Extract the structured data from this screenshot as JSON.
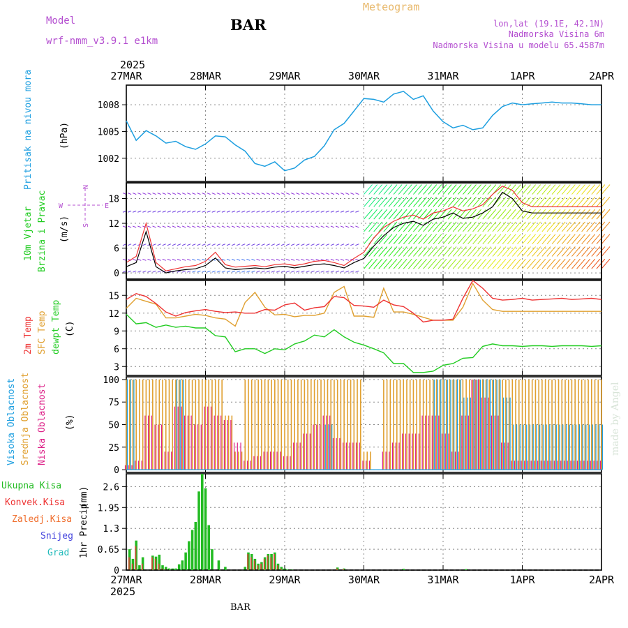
{
  "header": {
    "model_label": "Model",
    "model_name": "wrf-nmm_v3.9.1 e1km",
    "station": "BAR",
    "product": "Meteogram",
    "location": "lon,lat (19.1E, 42.1N)",
    "elevation": "Nadmorska Visina 6m",
    "model_elevation": "Nadmorska Visina u modelu 65.4587m"
  },
  "footer": {
    "station": "BAR",
    "credit": "made by Angel"
  },
  "time_axis": {
    "year": "2025",
    "labels": [
      "27MAR",
      "28MAR",
      "29MAR",
      "30MAR",
      "31MAR",
      "1APR",
      "2APR"
    ]
  },
  "colors": {
    "pressure": "#1e9fe0",
    "wind_label": "#22cc22",
    "wind_label2": "#22cc22",
    "compass": "#b44fd0",
    "t2m": "#ee3333",
    "tsfc": "#e0a030",
    "dewpt": "#22cc22",
    "cloud_high": "#1e9fe0",
    "cloud_mid": "#e0a030",
    "cloud_low": "#dd2288",
    "rain_total": "#22bb22",
    "rain_conv": "#ee3333",
    "rain_freeze": "#f07030",
    "snow": "#4444dd",
    "hail": "#22bbbb",
    "header_purple": "#b44fd0",
    "header_orange": "#e8b86a"
  },
  "chart_data": [
    {
      "type": "line",
      "panel": "pressure",
      "ylabel": "Pritisak na nivou mora",
      "unit": "(hPa)",
      "ylim": [
        999.4,
        1010.2
      ],
      "yticks": [
        1002,
        1005,
        1008
      ],
      "grid": true,
      "x": [
        0,
        3,
        6,
        9,
        12,
        15,
        18,
        21,
        24,
        27,
        30,
        33,
        36,
        39,
        42,
        45,
        48,
        51,
        54,
        57,
        60,
        63,
        66,
        69,
        72,
        75,
        78,
        81,
        84,
        87,
        90,
        93,
        96,
        99,
        102,
        105,
        108,
        111,
        114,
        117,
        120,
        123,
        126,
        129,
        132,
        135,
        138,
        141,
        144
      ],
      "series": [
        {
          "name": "",
          "values": [
            1006.2,
            1004.0,
            1005.1,
            1004.5,
            1003.7,
            1003.9,
            1003.3,
            1003.0,
            1003.6,
            1004.5,
            1004.4,
            1003.5,
            1002.8,
            1001.4,
            1001.1,
            1001.6,
            1000.6,
            1000.9,
            1001.8,
            1002.2,
            1003.4,
            1005.2,
            1005.9,
            1007.3,
            1008.7,
            1008.6,
            1008.3,
            1009.2,
            1009.5,
            1008.6,
            1009.0,
            1007.3,
            1006.1,
            1005.4,
            1005.7,
            1005.2,
            1005.4,
            1006.8,
            1007.8,
            1008.2,
            1008.0,
            1008.1,
            1008.2,
            1008.3,
            1008.2,
            1008.2,
            1008.1,
            1008.0,
            1008.0
          ]
        }
      ]
    },
    {
      "type": "line",
      "panel": "wind",
      "ylabel": [
        "10m Vjetar",
        "Brzina i Pravac"
      ],
      "unit": "(m/s)",
      "compass": [
        "N",
        "E",
        "W",
        "S"
      ],
      "ylim": [
        -1.5,
        21.8
      ],
      "yticks": [
        0,
        6,
        12,
        18
      ],
      "grid": true,
      "x": [
        0,
        3,
        6,
        9,
        12,
        15,
        18,
        21,
        24,
        27,
        30,
        33,
        36,
        39,
        42,
        45,
        48,
        51,
        54,
        57,
        60,
        63,
        66,
        69,
        72,
        75,
        78,
        81,
        84,
        87,
        90,
        93,
        96,
        99,
        102,
        105,
        108,
        111,
        114,
        117,
        120,
        123,
        126,
        129,
        132,
        135,
        138,
        141,
        144
      ],
      "series": [
        {
          "name": "",
          "values": [
            1.5,
            2.5,
            10,
            1.5,
            0,
            0.5,
            0.8,
            1.0,
            1.8,
            3.6,
            1.2,
            0.8,
            1.0,
            1.2,
            1.0,
            1.4,
            1.6,
            1.2,
            1.6,
            2.0,
            2.2,
            1.8,
            1.2,
            2.5,
            3.5,
            6.5,
            9.0,
            11.0,
            12.0,
            12.5,
            11.5,
            13.0,
            13.5,
            14.5,
            13.2,
            13.5,
            14.5,
            16.0,
            19.5,
            18.0,
            15.0,
            14.5,
            14.5,
            14.5,
            14.5,
            14.5,
            14.5,
            14.5,
            14.5
          ]
        },
        {
          "name": "",
          "values": [
            2.5,
            4.0,
            12.0,
            2.5,
            0.5,
            1.0,
            1.5,
            1.8,
            2.8,
            5.0,
            2.0,
            1.4,
            1.6,
            1.8,
            1.5,
            2.0,
            2.2,
            1.8,
            2.2,
            2.8,
            3.0,
            2.5,
            1.8,
            3.5,
            5.0,
            8.5,
            11.0,
            12.5,
            13.5,
            14.0,
            13.0,
            14.5,
            15.0,
            16.0,
            15.0,
            15.5,
            16.5,
            19.0,
            21.0,
            20.0,
            17.0,
            16.0,
            16.0,
            16.0,
            16.0,
            16.0,
            16.0,
            16.0,
            16.0
          ]
        }
      ]
    },
    {
      "type": "line",
      "panel": "temperature",
      "ylabel": [
        "2m Temp",
        "SFC Temp",
        "dewpt Temp"
      ],
      "unit": "(C)",
      "ylim": [
        1.5,
        17.5
      ],
      "yticks": [
        3,
        6,
        9,
        12,
        15
      ],
      "grid": true,
      "x": [
        0,
        3,
        6,
        9,
        12,
        15,
        18,
        21,
        24,
        27,
        30,
        33,
        36,
        39,
        42,
        45,
        48,
        51,
        54,
        57,
        60,
        63,
        66,
        69,
        72,
        75,
        78,
        81,
        84,
        87,
        90,
        93,
        96,
        99,
        102,
        105,
        108,
        111,
        114,
        117,
        120,
        123,
        126,
        129,
        132,
        135,
        138,
        141,
        144
      ],
      "series": [
        {
          "name": "",
          "values": [
            14.3,
            15.3,
            14.8,
            13.6,
            12.2,
            11.5,
            12.1,
            12.4,
            12.6,
            12.3,
            12.1,
            12.2,
            12.0,
            12.0,
            12.6,
            12.5,
            13.4,
            13.7,
            12.5,
            12.9,
            13.1,
            14.8,
            14.6,
            13.3,
            13.2,
            13.0,
            14.2,
            13.4,
            13.1,
            12.0,
            10.5,
            10.8,
            10.8,
            11.0,
            14.5,
            17.5,
            16.2,
            14.5,
            14.2,
            14.3,
            14.5,
            14.2,
            14.3,
            14.4,
            14.5,
            14.3,
            14.4,
            14.5,
            14.3
          ]
        },
        {
          "name": "",
          "values": [
            12.8,
            14.5,
            14.0,
            13.5,
            11.2,
            11.2,
            11.5,
            11.8,
            11.6,
            11.2,
            11.0,
            9.8,
            13.8,
            15.5,
            13.0,
            11.7,
            11.8,
            11.4,
            11.6,
            11.6,
            12.0,
            15.5,
            16.5,
            11.5,
            11.5,
            11.3,
            16.2,
            12.2,
            12.2,
            11.8,
            11.3,
            10.8,
            10.8,
            10.8,
            13.0,
            17.0,
            14.2,
            12.6,
            12.3,
            12.3,
            12.3,
            12.3,
            12.3,
            12.3,
            12.3,
            12.3,
            12.3,
            12.3,
            12.3
          ]
        },
        {
          "name": "",
          "values": [
            11.8,
            10.2,
            10.4,
            9.6,
            10.0,
            9.6,
            9.8,
            9.5,
            9.5,
            8.2,
            8.0,
            5.5,
            6.0,
            6.0,
            5.2,
            6.0,
            5.8,
            6.8,
            7.3,
            8.3,
            8.0,
            9.2,
            8.0,
            7.1,
            6.6,
            6.0,
            5.3,
            3.5,
            3.5,
            2.0,
            2.0,
            2.2,
            3.2,
            3.5,
            4.4,
            4.5,
            6.4,
            6.8,
            6.5,
            6.5,
            6.4,
            6.5,
            6.5,
            6.4,
            6.5,
            6.5,
            6.5,
            6.4,
            6.5
          ]
        }
      ]
    },
    {
      "type": "bar",
      "panel": "cloud",
      "ylabel": [
        "Visoka Oblacnost",
        "Srednja Oblacnost",
        "Niska Oblacnost"
      ],
      "unit": "(%)",
      "ylim": [
        -3,
        103
      ],
      "yticks": [
        0,
        25,
        50,
        75,
        100
      ],
      "grid": true,
      "x": [
        0,
        3,
        6,
        9,
        12,
        15,
        18,
        21,
        24,
        27,
        30,
        33,
        36,
        39,
        42,
        45,
        48,
        51,
        54,
        57,
        60,
        63,
        66,
        69,
        72,
        75,
        78,
        81,
        84,
        87,
        90,
        93,
        96,
        99,
        102,
        105,
        108,
        111,
        114,
        117,
        120,
        123,
        126,
        129,
        132,
        135,
        138,
        141,
        144
      ],
      "series": [
        {
          "name": "",
          "values": [
            100,
            0,
            0,
            0,
            0,
            100,
            0,
            0,
            0,
            0,
            0,
            0,
            0,
            0,
            0,
            0,
            0,
            0,
            0,
            0,
            50,
            0,
            0,
            0,
            0,
            0,
            0,
            0,
            0,
            0,
            0,
            100,
            100,
            100,
            80,
            100,
            100,
            100,
            80,
            50,
            50,
            50,
            50,
            50,
            50,
            50,
            50,
            50,
            50
          ]
        },
        {
          "name": "",
          "values": [
            100,
            100,
            100,
            100,
            100,
            100,
            100,
            100,
            100,
            100,
            60,
            20,
            100,
            100,
            100,
            100,
            100,
            100,
            100,
            100,
            100,
            100,
            100,
            100,
            20,
            0,
            100,
            100,
            100,
            100,
            100,
            100,
            100,
            100,
            100,
            100,
            100,
            100,
            100,
            100,
            100,
            100,
            100,
            100,
            100,
            100,
            100,
            100,
            100
          ]
        },
        {
          "name": "",
          "values": [
            5,
            10,
            60,
            50,
            20,
            70,
            60,
            50,
            70,
            60,
            55,
            30,
            10,
            15,
            20,
            20,
            15,
            30,
            40,
            50,
            60,
            35,
            30,
            30,
            10,
            0,
            20,
            30,
            40,
            40,
            60,
            60,
            40,
            20,
            60,
            100,
            80,
            60,
            30,
            10,
            10,
            10,
            10,
            10,
            10,
            10,
            10,
            10,
            10
          ]
        }
      ]
    },
    {
      "type": "bar",
      "panel": "precip",
      "ylabel": "1hr Precip",
      "unit": "(mm)",
      "legend": [
        "Ukupna Kisa",
        "Konvek.Kisa",
        "Zaledj.Kisa",
        "Snijeg",
        "Grad"
      ],
      "ylim": [
        0,
        3.0
      ],
      "yticks": [
        0,
        0.65,
        1.3,
        1.95,
        2.6
      ],
      "grid": true,
      "x": [
        1,
        2,
        3,
        4,
        5,
        8,
        9,
        10,
        11,
        12,
        13,
        14,
        15,
        16,
        17,
        18,
        19,
        20,
        21,
        22,
        23,
        24,
        25,
        26,
        28,
        30,
        36,
        37,
        38,
        39,
        40,
        41,
        42,
        43,
        44,
        45,
        46,
        47,
        48,
        49,
        50,
        64,
        66,
        84,
        103
      ],
      "series": [
        {
          "name": "",
          "values": [
            0.65,
            0.35,
            0.92,
            0.15,
            0.4,
            0.45,
            0.42,
            0.48,
            0.15,
            0.1,
            0.05,
            0.05,
            0.05,
            0.18,
            0.3,
            0.55,
            0.9,
            1.25,
            1.5,
            2.45,
            3.0,
            2.55,
            1.4,
            0.65,
            0.3,
            0.1,
            0.1,
            0.55,
            0.5,
            0.35,
            0.2,
            0.25,
            0.4,
            0.5,
            0.5,
            0.55,
            0.2,
            0.1,
            0.05,
            0.02,
            0.02,
            0.08,
            0.05,
            0.04,
            0.03
          ]
        },
        {
          "name": "",
          "values": [
            0.4,
            0.2,
            0.75,
            0.0,
            0.2,
            0.4,
            0.35,
            0.2,
            0.05,
            0.02,
            0.0,
            0.0,
            0.0,
            0.0,
            0.0,
            0.0,
            0.0,
            0.0,
            0.0,
            0.0,
            0.0,
            0.0,
            0.0,
            0.0,
            0.0,
            0.0,
            0.0,
            0.5,
            0.4,
            0.3,
            0.15,
            0.2,
            0.35,
            0.45,
            0.4,
            0.5,
            0.15,
            0.05,
            0.0,
            0.0,
            0.0,
            0.05,
            0.03,
            0.0,
            0.0
          ]
        }
      ]
    }
  ]
}
